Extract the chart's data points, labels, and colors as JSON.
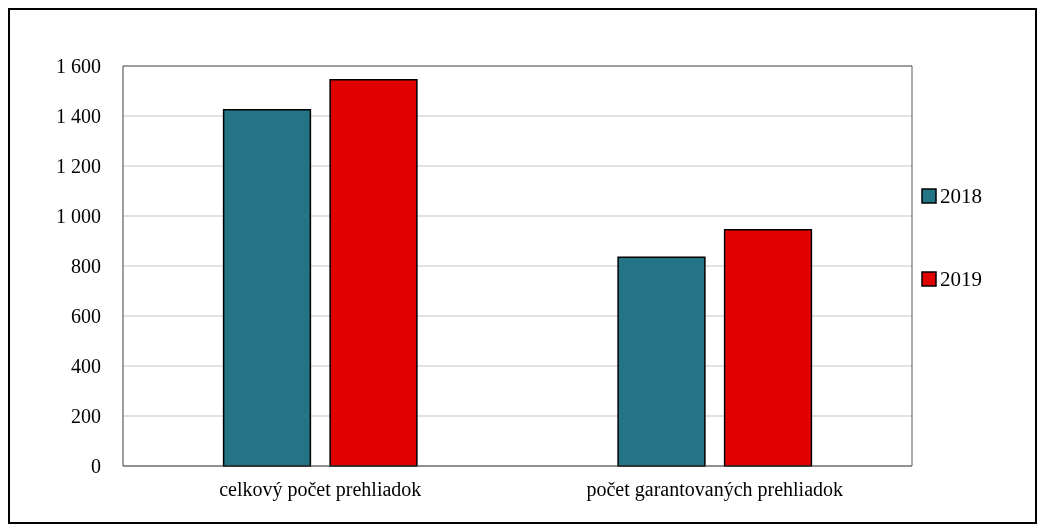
{
  "chart_data": {
    "type": "bar",
    "categories": [
      "celkový počet prehliadok",
      "počet garantovaných prehliadok"
    ],
    "series": [
      {
        "name": "2018",
        "color": "#237586",
        "values": [
          1425,
          835
        ]
      },
      {
        "name": "2019",
        "color": "#e00000",
        "values": [
          1545,
          945
        ]
      }
    ],
    "ylim": [
      0,
      1600
    ],
    "yticks": [
      0,
      200,
      400,
      600,
      800,
      {
        "value": 1000,
        "label": "1 000"
      },
      {
        "value": 1200,
        "label": "1 200"
      },
      {
        "value": 1400,
        "label": "1 400"
      },
      {
        "value": 1600,
        "label": "1 600"
      }
    ],
    "grid": "y",
    "legend": "right"
  }
}
